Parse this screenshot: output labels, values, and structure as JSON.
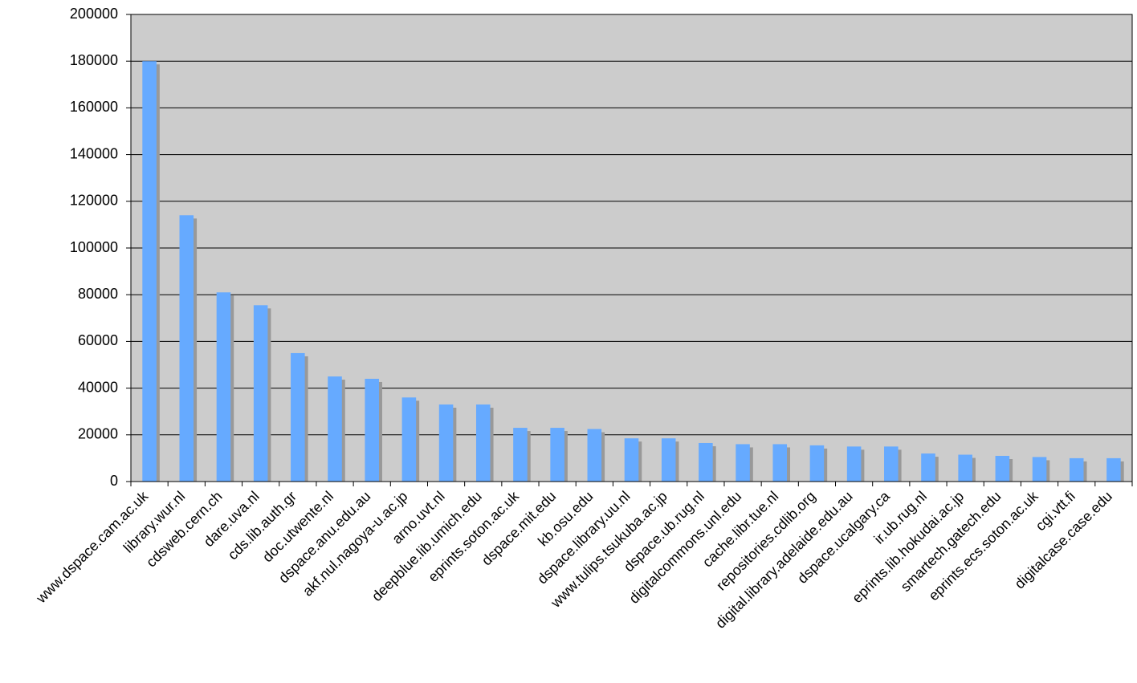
{
  "chart_data": {
    "type": "bar",
    "categories": [
      "www.dspace.cam.ac.uk",
      "library.wur.nl",
      "cdsweb.cern.ch",
      "dare.uva.nl",
      "cds.lib.auth.gr",
      "doc.utwente.nl",
      "dspace.anu.edu.au",
      "akf.nul.nagoya-u.ac.jp",
      "arno.uvt.nl",
      "deepblue.lib.umich.edu",
      "eprints.soton.ac.uk",
      "dspace.mit.edu",
      "kb.osu.edu",
      "dspace.library.uu.nl",
      "www.tulips.tsukuba.ac.jp",
      "dspace.ub.rug.nl",
      "digitalcommons.unl.edu",
      "cache.libr.tue.nl",
      "repositories.cdlib.org",
      "digital.library.adelaide.edu.au",
      "dspace.ucalgary.ca",
      "ir.ub.rug.nl",
      "eprints.lib.hokudai.ac.jp",
      "smartech.gatech.edu",
      "eprints.ecs.soton.ac.uk",
      "cgi.vtt.fi",
      "digitalcase.case.edu"
    ],
    "values": [
      180000,
      114000,
      81000,
      75500,
      55000,
      45000,
      44000,
      36000,
      33000,
      33000,
      23000,
      23000,
      22500,
      18500,
      18500,
      16500,
      16000,
      16000,
      15500,
      15000,
      15000,
      12000,
      11500,
      11000,
      10500,
      10000,
      10000
    ],
    "color": "#66aaff",
    "ylim": [
      0,
      200000
    ],
    "yticks": [
      0,
      20000,
      40000,
      60000,
      80000,
      100000,
      120000,
      140000,
      160000,
      180000,
      200000
    ],
    "grid": true
  }
}
